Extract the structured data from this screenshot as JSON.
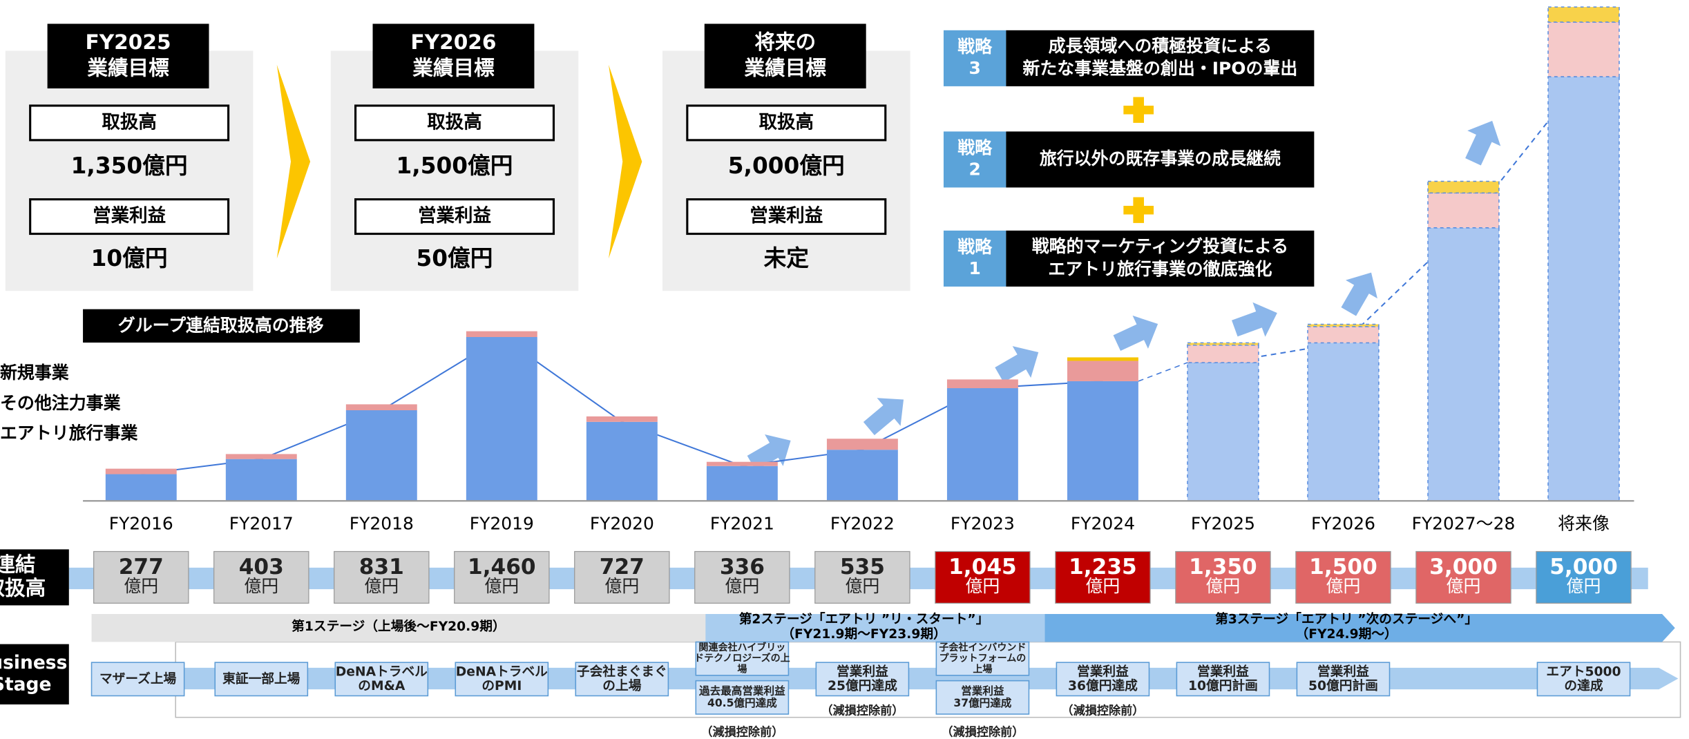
{
  "targets": [
    {
      "header": [
        "FY2025",
        "業績目標"
      ],
      "items": [
        {
          "label": "取扱高",
          "value": "1,350億円"
        },
        {
          "label": "営業利益",
          "value": "10億円"
        }
      ]
    },
    {
      "header": [
        "FY2026",
        "業績目標"
      ],
      "items": [
        {
          "label": "取扱高",
          "value": "1,500億円"
        },
        {
          "label": "営業利益",
          "value": "50億円"
        }
      ]
    },
    {
      "header": [
        "将来の",
        "業績目標"
      ],
      "items": [
        {
          "label": "取扱高",
          "value": "5,000億円"
        },
        {
          "label": "営業利益",
          "value": "未定"
        }
      ]
    }
  ],
  "strategies": [
    {
      "label": [
        "戦略",
        "3"
      ],
      "text": [
        "成長領域への積極投資による",
        "新たな事業基盤の創出・IPOの輩出"
      ]
    },
    {
      "label": [
        "戦略",
        "2"
      ],
      "text": [
        "旅行以外の既存事業の成長継続"
      ]
    },
    {
      "label": [
        "戦略",
        "1"
      ],
      "text": [
        "戦略的マーケティング投資による",
        "エアトリ旅行事業の徹底強化"
      ]
    }
  ],
  "chart_data": {
    "type": "bar",
    "stacked": true,
    "title": "グループ連結取扱高の推移",
    "categories": [
      "FY2016",
      "FY2017",
      "FY2018",
      "FY2019",
      "FY2020",
      "FY2021",
      "FY2022",
      "FY2023",
      "FY2024",
      "FY2025",
      "FY2026",
      "FY2027～28",
      "将来像"
    ],
    "series": [
      {
        "name": "エアトリ旅行事業",
        "color": "#6c9de6",
        "forecast_color": "#a9c6f1",
        "values": [
          230,
          360,
          780,
          1410,
          680,
          300,
          440,
          970,
          1030,
          1190,
          1360,
          2350,
          3650
        ]
      },
      {
        "name": "その他注力事業",
        "color": "#e99a9a",
        "forecast_color": "#f5c9c9",
        "values": [
          47,
          43,
          51,
          50,
          47,
          36,
          95,
          75,
          175,
          150,
          140,
          300,
          470
        ]
      },
      {
        "name": "新規事業",
        "color": "#f6c400",
        "forecast_color": "#f8d24a",
        "values": [
          0,
          0,
          0,
          0,
          0,
          0,
          0,
          0,
          30,
          20,
          20,
          100,
          130
        ]
      }
    ],
    "forecast": [
      false,
      false,
      false,
      false,
      false,
      false,
      false,
      false,
      false,
      true,
      true,
      true,
      true
    ],
    "ylim": [
      0,
      4300
    ]
  },
  "totals": {
    "label": [
      "連結",
      "取扱高"
    ],
    "unit": "億円",
    "values": [
      277,
      403,
      831,
      1460,
      727,
      336,
      535,
      1045,
      1235,
      1350,
      1500,
      3000,
      5000
    ],
    "value_labels": [
      "277",
      "403",
      "831",
      "1,460",
      "727",
      "336",
      "535",
      "1,045",
      "1,235",
      "1,350",
      "1,500",
      "3,000",
      "5,000"
    ],
    "colors": [
      "#d0d0d0",
      "#d0d0d0",
      "#d0d0d0",
      "#d0d0d0",
      "#d0d0d0",
      "#d0d0d0",
      "#d0d0d0",
      "#c00000",
      "#c00000",
      "#e06666",
      "#e06666",
      "#e06666",
      "#4a9fd8"
    ]
  },
  "stages": {
    "label": [
      "Business",
      "Stage"
    ],
    "phases": [
      {
        "text": [
          "第1ステージ（上場後～FY20.9期）"
        ],
        "color": "#e4e4e4"
      },
      {
        "text": [
          "第2ステージ「エアトリ ”リ・スタート”」",
          "（FY21.9期～FY23.9期）"
        ],
        "color": "#a9cdef"
      },
      {
        "text": [
          "第3ステージ「エアトリ ”次のステージへ”」",
          "（FY24.9期～）"
        ],
        "color": "#6eaee6"
      }
    ],
    "milestones": [
      {
        "boxes": [
          [
            "マザーズ上場"
          ]
        ]
      },
      {
        "boxes": [
          [
            "東証一部上場"
          ]
        ]
      },
      {
        "boxes": [
          [
            "DeNAトラベル",
            "のM&A"
          ]
        ]
      },
      {
        "boxes": [
          [
            "DeNAトラベル",
            "のPMI"
          ]
        ]
      },
      {
        "boxes": [
          [
            "子会社まぐまぐ",
            "の上場"
          ]
        ]
      },
      {
        "boxes": [
          [
            "関連会社ハイブリッ",
            "ドテクノロジーズの上",
            "場"
          ],
          [
            "過去最高営業利益",
            "40.5億円達成"
          ]
        ],
        "note": "（減損控除前）"
      },
      {
        "boxes": [
          [
            "営業利益",
            "25億円達成"
          ]
        ],
        "note": "（減損控除前）"
      },
      {
        "boxes": [
          [
            "子会社インバウンド",
            "プラットフォームの",
            "上場"
          ],
          [
            "営業利益",
            "37億円達成"
          ]
        ],
        "note": "（減損控除前）"
      },
      {
        "boxes": [
          [
            "営業利益",
            "36億円達成"
          ]
        ],
        "note": "（減損控除前）"
      },
      {
        "boxes": [
          [
            "営業利益",
            "10億円計画"
          ]
        ]
      },
      {
        "boxes": [
          [
            "営業利益",
            "50億円計画"
          ]
        ]
      },
      {
        "boxes": []
      },
      {
        "boxes": [
          [
            "エアト5000",
            "の達成"
          ]
        ]
      }
    ]
  }
}
